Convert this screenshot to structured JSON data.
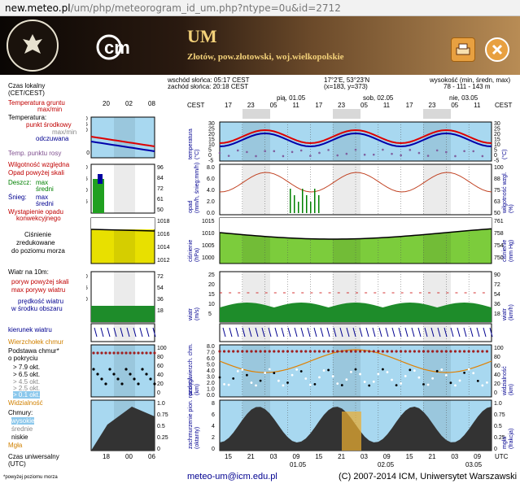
{
  "browser": {
    "url_host": "new.meteo.pl",
    "url_path": "/um/php/meteorogram_id_um.php?ntype=0u&id=2712"
  },
  "banner": {
    "model": "UM",
    "location": "Złotów, pow.złotowski, woj.wielkopolskie",
    "seal_text": "UNIWERSYTET WARSZAWSKI",
    "logo_text": "icm"
  },
  "info": {
    "sunrise": "wschód słońca: 05:17 CEST",
    "sunset": "zachód słońca: 20:18 CEST",
    "coords": "17°2'E, 53°23'N",
    "grid": "(x=183,  y=373)",
    "height_label": "wysokość (min, średn, max)",
    "height_values": "78 - 111 - 143 m"
  },
  "legend": {
    "local_time": "Czas lokalny",
    "local_time2": "(CET/CEST)",
    "temp_ground": "Temperatura gruntu",
    "temp_ground2": "max/min",
    "temperature": "Temperatura:",
    "center_point": "punkt środkowy",
    "minmax": "max/min",
    "felt": "odczuwana",
    "dew": "Temp. punktu rosy",
    "humidity": "Wilgotność względna",
    "rain_above": "Opad powyżej skali",
    "rain": "Deszcz:",
    "rain_max": "max",
    "rain_avg": "średni",
    "snow": "Śnieg:",
    "snow_max": "max",
    "snow_avg": "średni",
    "convective": "Wystąpienie opadu",
    "convective2": "konwekcyjnego",
    "pressure1": "Ciśnienie",
    "pressure2": "zredukowane",
    "pressure3": "do poziomu morza",
    "wind10": "Wiatr na 10m:",
    "gust_above": "poryw powyżej skali",
    "gust_max": "max porywy wiatru",
    "wind_speed": "prędkość wiatru",
    "wind_area": "w środku obszaru",
    "wind_dir": "kierunek wiatru",
    "cloud_top": "Wierzchołek chmur",
    "cloud_base": "Podstawa chmur*",
    "cloud_base2": "o pokryciu",
    "okta1": "> 7.9 okt.",
    "okta2": "> 6.5 okt.",
    "okta3": "> 4.5 okt.",
    "okta4": "> 2.5 okt.",
    "okta5": "> 0.1 okt.",
    "visibility": "Widzialność",
    "clouds": "Chmury:",
    "clouds_high": "wysokie",
    "clouds_mid": "średnie",
    "clouds_low": "niskie",
    "fog": "Mgła",
    "utc_time": "Czas uniwersalny",
    "utc_time2": "(UTC)",
    "footnote": "*powyżej poziomu morza"
  },
  "left_axes": {
    "time_top": [
      "20",
      "02",
      "08"
    ],
    "time_bottom": [
      "18",
      "00",
      "06"
    ],
    "temp_ticks": [
      "20",
      "15",
      "10",
      "5",
      "0",
      "-5",
      "-10"
    ],
    "rain_ticks": [
      "2.0",
      "1.5",
      "1.0",
      "0.5"
    ],
    "rain_right": [
      "96",
      "84",
      "72",
      "61",
      "50"
    ],
    "press_left": [
      "1018",
      "1016",
      "1014",
      "1012"
    ],
    "press_right": [
      "1018",
      "1016",
      "1014",
      "1012"
    ],
    "wind_left": [
      "20",
      "15",
      "10",
      "5"
    ],
    "wind_right": [
      "72",
      "54",
      "36",
      "18"
    ],
    "cloud_left": [
      "8.0",
      "7.0",
      "6.0",
      "5.0",
      "4.0",
      "3.0",
      "2.0",
      "1.0",
      "0.0"
    ],
    "vis_right": [
      "100",
      "80",
      "60",
      "40",
      "20",
      "0"
    ],
    "frac_left": [
      "8",
      "6",
      "4",
      "2",
      "0"
    ],
    "frac_right": [
      "1.0",
      "0.75",
      "0.5",
      "0.25",
      "0"
    ]
  },
  "main_axes": {
    "cest": "CEST",
    "utc": "UTC",
    "top_hours": [
      "17",
      "23",
      "05",
      "11",
      "17",
      "23",
      "05",
      "11",
      "17",
      "23",
      "05",
      "11"
    ],
    "top_days": [
      "pią, 01.05",
      "sob, 02.05",
      "nie, 03.05"
    ],
    "bottom_hours": [
      "15",
      "21",
      "03",
      "09",
      "15",
      "21",
      "03",
      "09",
      "15",
      "21",
      "03",
      "09"
    ],
    "bottom_days": [
      "01.05",
      "02.05",
      "03.05"
    ],
    "temp_left": [
      "30",
      "25",
      "20",
      "15",
      "10",
      "5",
      "0",
      "-5"
    ],
    "temp_right": [
      "30",
      "25",
      "20",
      "15",
      "10",
      "5",
      "0",
      "-5"
    ],
    "rain_left": [
      "8.0",
      "6.0",
      "4.0",
      "2.0",
      "0.0"
    ],
    "rain_right": [
      "100",
      "88",
      "75",
      "63",
      "50"
    ],
    "press_left": [
      "1015",
      "1010",
      "1005",
      "1000"
    ],
    "press_right": [
      "761",
      "758",
      "754",
      "750"
    ],
    "wind_left": [
      "25",
      "20",
      "15",
      "10",
      "5"
    ],
    "wind_right": [
      "90",
      "72",
      "54",
      "36",
      "18"
    ],
    "cloud_left": [
      "8.0",
      "7.0",
      "6.0",
      "5.0",
      "4.0",
      "3.0",
      "2.0",
      "1.0",
      "0.0"
    ],
    "vis_right": [
      "100",
      "80",
      "60",
      "40",
      "20",
      "0"
    ],
    "frac_left": [
      "8",
      "6",
      "4",
      "2",
      "0"
    ],
    "frac_right": [
      "1.0",
      "0.75",
      "0.5",
      "0.25",
      "0"
    ],
    "lbl_temp": "temperatura",
    "lbl_temp_u": "(°C)",
    "lbl_rain": "opad",
    "lbl_rain_u": "(mm/h, śnieg:mm/h)",
    "lbl_hum": "wilgotność wzgl.",
    "lbl_hum_u": "(%)",
    "lbl_press": "ciśnienie",
    "lbl_press_u": "(hPa)",
    "lbl_press_r": "ciśnienie",
    "lbl_press_ru": "(mm Hg)",
    "lbl_wind": "wiatr",
    "lbl_wind_u": "(m/s)",
    "lbl_wind_r": "wiatr",
    "lbl_wind_ru": "(km/h)",
    "lbl_cloud": "podst./wierzch. chm.",
    "lbl_cloud_u": "(km)",
    "lbl_vis": "widzialność",
    "lbl_vis_u": "(km)",
    "lbl_frac": "zachmurzenie pion. rozcięgł.",
    "lbl_frac_u": "(oktanty)",
    "lbl_frac_r": "mgła",
    "lbl_frac_ru": "(frakcja)"
  },
  "footer": {
    "email": "meteo-um@icm.edu.pl",
    "copyright": "(C) 2007-2014 ICM, Uniwersytet Warszawski"
  },
  "colors": {
    "temp_bg": "#a8d8f0",
    "rain_bg": "#ffffff",
    "press_bg": "#7ccc3c",
    "press_bg_left": "#e8e000",
    "wind_bg": "#ffffff",
    "cloud_bg": "#a8d8f0",
    "night": "#d8d8d8"
  }
}
